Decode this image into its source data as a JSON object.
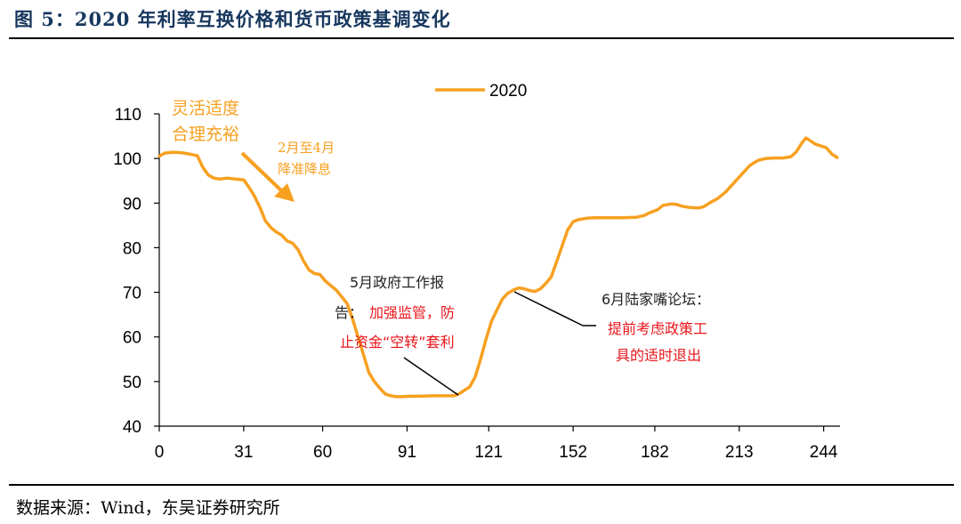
{
  "header": {
    "title": "图 5：2020 年利率互换价格和货币政策基调变化"
  },
  "footer": {
    "source": "数据来源：Wind，东吴证券研究所"
  },
  "colors": {
    "series": "#f7a020",
    "title": "#17375e",
    "red_annotation": "#e8141a"
  },
  "chart_data": {
    "type": "line",
    "title": "",
    "xlabel": "",
    "ylabel": "",
    "ylim": [
      40,
      110
    ],
    "xlim": [
      0,
      250
    ],
    "y_ticks": [
      110,
      100,
      90,
      80,
      70,
      60,
      50,
      40
    ],
    "x_ticks": [
      0,
      31,
      60,
      91,
      121,
      152,
      182,
      213,
      244
    ],
    "legend": {
      "position": "top-center",
      "label": "2020"
    },
    "series": [
      {
        "name": "2020",
        "color": "#f7a020",
        "points": [
          [
            0,
            100.5
          ],
          [
            2,
            101.2
          ],
          [
            5,
            101.4
          ],
          [
            8,
            101.3
          ],
          [
            11,
            101.0
          ],
          [
            14,
            100.6
          ],
          [
            16,
            98.0
          ],
          [
            18,
            96.3
          ],
          [
            20,
            95.6
          ],
          [
            22,
            95.4
          ],
          [
            25,
            95.6
          ],
          [
            28,
            95.4
          ],
          [
            31,
            95.2
          ],
          [
            33,
            93.5
          ],
          [
            35,
            91.5
          ],
          [
            37,
            89.0
          ],
          [
            39,
            86.0
          ],
          [
            41,
            84.5
          ],
          [
            43,
            83.5
          ],
          [
            45,
            82.8
          ],
          [
            47,
            81.5
          ],
          [
            49,
            81.0
          ],
          [
            51,
            79.5
          ],
          [
            53,
            77.0
          ],
          [
            55,
            75.0
          ],
          [
            57,
            74.2
          ],
          [
            59,
            74.0
          ],
          [
            61,
            72.5
          ],
          [
            63,
            71.5
          ],
          [
            65,
            70.5
          ],
          [
            67,
            69.0
          ],
          [
            69,
            67.5
          ],
          [
            71,
            64.0
          ],
          [
            73,
            60.0
          ],
          [
            75,
            56.0
          ],
          [
            77,
            52.0
          ],
          [
            79,
            50.0
          ],
          [
            81,
            48.5
          ],
          [
            83,
            47.2
          ],
          [
            85,
            46.8
          ],
          [
            87,
            46.6
          ],
          [
            89,
            46.6
          ],
          [
            92,
            46.7
          ],
          [
            96,
            46.7
          ],
          [
            100,
            46.8
          ],
          [
            104,
            46.8
          ],
          [
            108,
            46.8
          ],
          [
            110,
            47.2
          ],
          [
            112,
            48.0
          ],
          [
            114,
            48.8
          ],
          [
            116,
            51.0
          ],
          [
            118,
            55.0
          ],
          [
            120,
            59.5
          ],
          [
            122,
            63.5
          ],
          [
            124,
            66.0
          ],
          [
            126,
            68.5
          ],
          [
            128,
            69.8
          ],
          [
            130,
            70.5
          ],
          [
            132,
            71.0
          ],
          [
            134,
            70.8
          ],
          [
            136,
            70.4
          ],
          [
            138,
            70.2
          ],
          [
            140,
            70.8
          ],
          [
            142,
            72.0
          ],
          [
            144,
            73.5
          ],
          [
            146,
            77.0
          ],
          [
            148,
            80.5
          ],
          [
            150,
            84.0
          ],
          [
            152,
            85.8
          ],
          [
            154,
            86.3
          ],
          [
            157,
            86.6
          ],
          [
            160,
            86.7
          ],
          [
            165,
            86.7
          ],
          [
            170,
            86.7
          ],
          [
            175,
            86.8
          ],
          [
            178,
            87.2
          ],
          [
            180,
            87.8
          ],
          [
            183,
            88.5
          ],
          [
            185,
            89.5
          ],
          [
            188,
            89.8
          ],
          [
            190,
            89.7
          ],
          [
            192,
            89.3
          ],
          [
            195,
            89.0
          ],
          [
            198,
            88.9
          ],
          [
            200,
            89.2
          ],
          [
            202,
            90.0
          ],
          [
            205,
            91.0
          ],
          [
            208,
            92.5
          ],
          [
            211,
            94.5
          ],
          [
            214,
            96.5
          ],
          [
            217,
            98.5
          ],
          [
            220,
            99.6
          ],
          [
            223,
            100.0
          ],
          [
            226,
            100.1
          ],
          [
            229,
            100.1
          ],
          [
            232,
            100.4
          ],
          [
            234,
            101.5
          ],
          [
            236,
            103.5
          ],
          [
            237.5,
            104.6
          ],
          [
            239,
            104.0
          ],
          [
            241,
            103.2
          ],
          [
            243,
            102.8
          ],
          [
            245,
            102.4
          ],
          [
            247,
            101.0
          ],
          [
            249,
            100.2
          ]
        ]
      }
    ],
    "annotations": [
      {
        "id": "accommodative",
        "lines": [
          "灵活适度",
          "合理充裕"
        ],
        "color": "orange"
      },
      {
        "id": "rrr-cut",
        "lines": [
          "2月至4月",
          "降准降息"
        ],
        "color": "orange"
      },
      {
        "id": "gov-report-title",
        "lines": [
          "5月政府工作报"
        ],
        "color": "black"
      },
      {
        "id": "gov-report-prefix",
        "text": "告：",
        "color": "black"
      },
      {
        "id": "gov-report-red",
        "lines": [
          "加强监管，防",
          "止资金“空转”套利"
        ],
        "color": "red"
      },
      {
        "id": "lujiazui-title",
        "lines": [
          "6月陆家嘴论坛："
        ],
        "color": "black"
      },
      {
        "id": "lujiazui-red",
        "lines": [
          "提前考虑政策工",
          "具的适时退出"
        ],
        "color": "red"
      }
    ]
  }
}
